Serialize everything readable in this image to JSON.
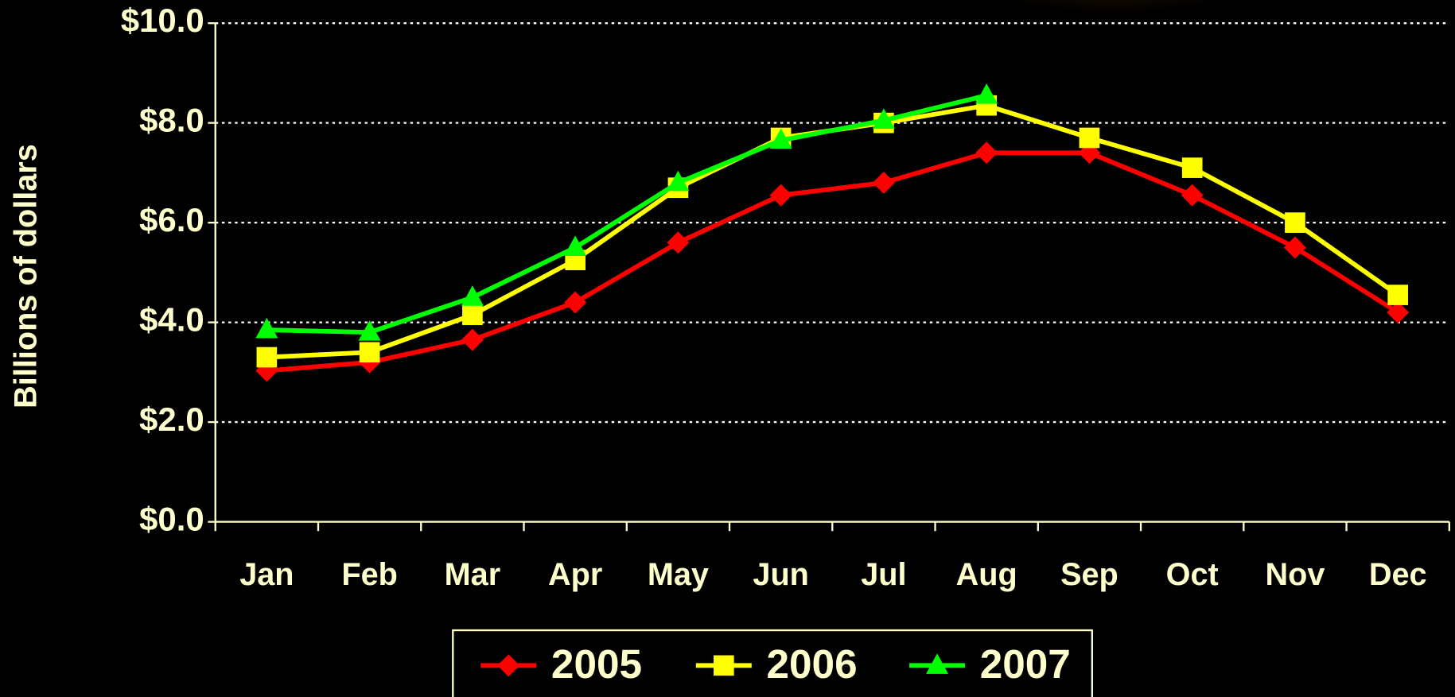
{
  "chart_data": {
    "type": "line",
    "y_label": "Billions of dollars",
    "categories": [
      "Jan",
      "Feb",
      "Mar",
      "Apr",
      "May",
      "Jun",
      "Jul",
      "Aug",
      "Sep",
      "Oct",
      "Nov",
      "Dec"
    ],
    "series": [
      {
        "name": "2005",
        "color": "#ff0000",
        "marker": "diamond",
        "values": [
          3.03,
          3.2,
          3.65,
          4.4,
          5.6,
          6.55,
          6.8,
          7.4,
          7.4,
          6.55,
          5.5,
          4.2
        ]
      },
      {
        "name": "2006",
        "color": "#ffff00",
        "marker": "square",
        "values": [
          3.3,
          3.4,
          4.15,
          5.25,
          6.7,
          7.7,
          8.0,
          8.35,
          7.7,
          7.1,
          6.0,
          4.55
        ]
      },
      {
        "name": "2007",
        "color": "#00ff00",
        "marker": "triangle",
        "values": [
          3.85,
          3.8,
          4.5,
          5.5,
          6.8,
          7.65,
          8.05,
          8.55,
          null,
          null,
          null,
          null
        ]
      }
    ],
    "ylim": [
      0,
      10
    ],
    "yticks": [
      {
        "value": 0,
        "label": "$0.0"
      },
      {
        "value": 2,
        "label": "$2.0"
      },
      {
        "value": 4,
        "label": "$4.0"
      },
      {
        "value": 6,
        "label": "$6.0"
      },
      {
        "value": 8,
        "label": "$8.0"
      },
      {
        "value": 10,
        "label": "$10.0"
      }
    ],
    "grid": true,
    "legend": "bottom"
  }
}
